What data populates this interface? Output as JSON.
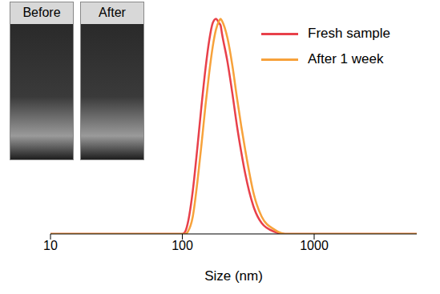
{
  "chart_data": {
    "type": "line",
    "x_label": "Size (nm)",
    "log": "x",
    "grid": false,
    "tick_labels": "x",
    "legend": "upper right",
    "annotations": [
      "Before",
      "After"
    ],
    "xlim": [
      10,
      6000
    ],
    "xticks": [
      10,
      100,
      1000
    ],
    "ylim": [
      0,
      105
    ],
    "x": [
      10,
      100,
      105,
      110,
      120,
      130,
      140,
      150,
      160,
      170,
      180,
      190,
      195,
      200,
      220,
      240,
      260,
      280,
      300,
      350,
      400,
      500,
      600,
      6000
    ],
    "series": [
      {
        "name": "Fresh sample",
        "color": "#e8404a",
        "values": [
          0,
          0,
          1,
          5,
          20,
          40,
          60,
          77,
          90,
          98,
          100,
          98,
          97,
          93,
          80,
          65,
          50,
          38,
          28,
          12,
          5,
          1,
          0,
          0
        ]
      },
      {
        "name": "After 1 week",
        "color": "#f7a23b",
        "values": [
          0,
          0,
          0,
          1,
          8,
          24,
          42,
          60,
          75,
          87,
          95,
          99,
          100,
          99,
          91,
          78,
          63,
          50,
          39,
          18,
          8,
          2,
          0,
          0
        ]
      }
    ]
  }
}
